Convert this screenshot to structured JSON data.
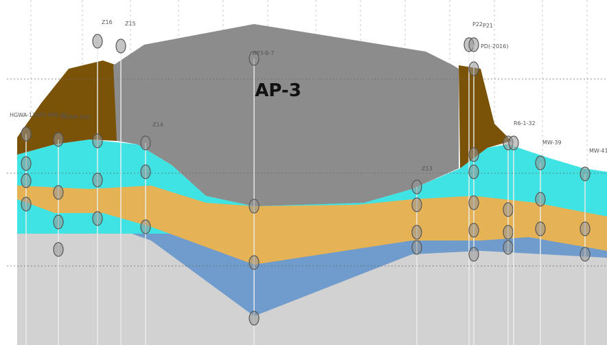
{
  "title": "AP-3",
  "wells": [
    {
      "label": "HGWA-12"
    },
    {
      "label": "AP1-MW-32"
    },
    {
      "label": "HGWA-45D"
    },
    {
      "label": "Z16"
    },
    {
      "label": "Z15"
    },
    {
      "label": "Z14"
    },
    {
      "label": "AP3-B-7"
    },
    {
      "label": "Z13"
    },
    {
      "label": "P22"
    },
    {
      "label": "P21"
    },
    {
      "label": "PD(-2016)"
    },
    {
      "label": "R6-1-32"
    },
    {
      "label": "MW-39"
    },
    {
      "label": "MW-41"
    }
  ]
}
